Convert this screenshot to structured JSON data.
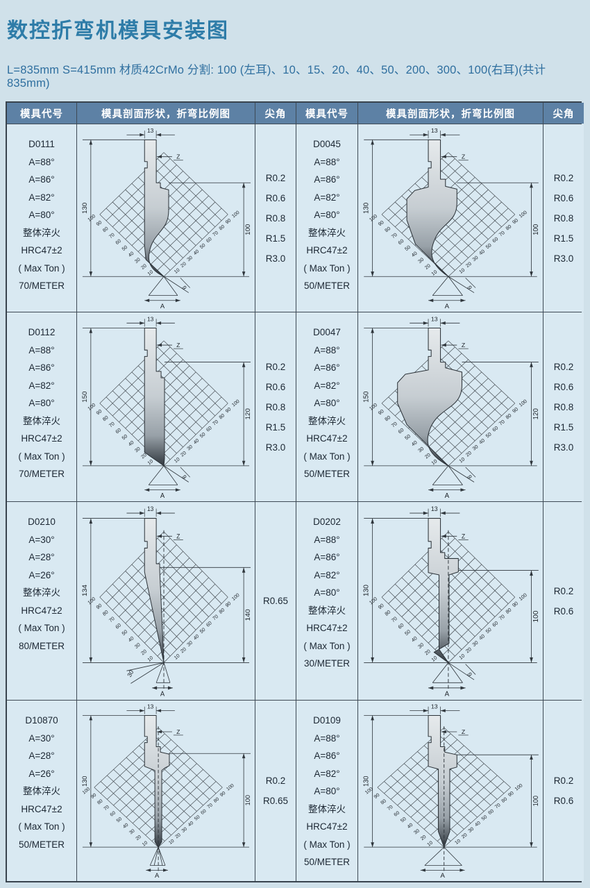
{
  "title": "数控折弯机模具安装图",
  "subtitle": "L=835mm S=415mm 材质42CrMo 分割: 100 (左耳)、10、15、20、40、50、200、300、100(右耳)(共计835mm)",
  "colors": {
    "background": "#d0e1ea",
    "cell_background": "#d9e9f2",
    "header_background": "#5d81a5",
    "header_text": "#ffffff",
    "title_text": "#2e7ca8",
    "border": "#3e4a55"
  },
  "table": {
    "headers": [
      "模具代号",
      "模具剖面形状，折弯比例图",
      "尖角",
      "模具代号",
      "模具剖面形状，折弯比例图",
      "尖角"
    ],
    "scale_labels": [
      100,
      90,
      80,
      70,
      60,
      50,
      40,
      30,
      20,
      10
    ],
    "rows": [
      {
        "cells": [
          {
            "code": "D0111",
            "specs": [
              "A=88°",
              "A=86°",
              "A=82°",
              "A=80°",
              "整体淬火",
              "HRC47±2",
              "( Max Ton )",
              "70/METER"
            ],
            "tip_radii": [
              "R0.2",
              "R0.6",
              "R0.8",
              "R1.5",
              "R3.0"
            ],
            "drawing": {
              "profile": "gooseneck-slim",
              "top_width": "13",
              "offset": "Z",
              "left_height": "130",
              "right_height": "100",
              "tip_angle": "9",
              "base": "A"
            }
          },
          {
            "code": "D0045",
            "specs": [
              "A=88°",
              "A=86°",
              "A=82°",
              "A=80°",
              "整体淬火",
              "HRC47±2",
              "( Max Ton )",
              "50/METER"
            ],
            "tip_radii": [
              "R0.2",
              "R0.6",
              "R0.8",
              "R1.5",
              "R3.0"
            ],
            "drawing": {
              "profile": "gooseneck-wide",
              "top_width": "13",
              "offset": "Z",
              "left_height": "130",
              "right_height": "100",
              "tip_angle": "9",
              "base": "A"
            }
          }
        ]
      },
      {
        "cells": [
          {
            "code": "D0112",
            "specs": [
              "A=88°",
              "A=86°",
              "A=82°",
              "A=80°",
              "整体淬火",
              "HRC47±2",
              "( Max Ton )",
              "70/METER"
            ],
            "tip_radii": [
              "R0.2",
              "R0.6",
              "R0.8",
              "R1.5",
              "R3.0"
            ],
            "drawing": {
              "profile": "blade-straight",
              "top_width": "13",
              "offset": "Z",
              "left_height": "150",
              "right_height": "120",
              "tip_angle": "9",
              "base": "A"
            }
          },
          {
            "code": "D0047",
            "specs": [
              "A=88°",
              "A=86°",
              "A=82°",
              "A=80°",
              "整体淬火",
              "HRC47±2",
              "( Max Ton )",
              "50/METER"
            ],
            "tip_radii": [
              "R0.2",
              "R0.6",
              "R0.8",
              "R1.5",
              "R3.0"
            ],
            "drawing": {
              "profile": "gooseneck-large",
              "top_width": "13",
              "offset": "Z",
              "left_height": "150",
              "right_height": "120",
              "tip_angle": "9",
              "base": "A"
            }
          }
        ]
      },
      {
        "cells": [
          {
            "code": "D0210",
            "specs": [
              "A=30°",
              "A=28°",
              "A=26°",
              "整体淬火",
              "HRC47±2",
              "( Max Ton )",
              "80/METER"
            ],
            "tip_radii": [
              "R0.65"
            ],
            "drawing": {
              "profile": "needle",
              "top_width": "13",
              "offset": "Z",
              "left_height": "134",
              "right_height": "140",
              "tip_angle": "30",
              "base": "A"
            }
          },
          {
            "code": "D0202",
            "specs": [
              "A=88°",
              "A=86°",
              "A=82°",
              "A=80°",
              "整体淬火",
              "HRC47±2",
              "( Max Ton )",
              "30/METER"
            ],
            "tip_radii": [
              "R0.2",
              "R0.6"
            ],
            "drawing": {
              "profile": "blade-step",
              "top_width": "13",
              "offset": "Z",
              "left_height": "130",
              "right_height": "100",
              "tip_angle": "9",
              "base": "A"
            }
          }
        ]
      },
      {
        "cells": [
          {
            "code": "D10870",
            "specs": [
              "A=30°",
              "A=28°",
              "A=26°",
              "整体淬火",
              "HRC47±2",
              "( Max Ton )",
              "50/METER"
            ],
            "tip_radii": [
              "R0.2",
              "R0.65"
            ],
            "drawing": {
              "profile": "blade-thin",
              "top_width": "13",
              "offset": "Z",
              "left_height": "130",
              "right_height": "100",
              "tip_angle": "",
              "base": "A"
            }
          },
          {
            "code": "D0109",
            "specs": [
              "A=88°",
              "A=86°",
              "A=82°",
              "A=80°",
              "整体淬火",
              "HRC47±2",
              "( Max Ton )",
              "50/METER"
            ],
            "tip_radii": [
              "R0.2",
              "R0.6"
            ],
            "drawing": {
              "profile": "blade-point",
              "top_width": "13",
              "offset": "Z",
              "left_height": "130",
              "right_height": "100",
              "tip_angle": "",
              "base": "A"
            }
          }
        ]
      }
    ]
  }
}
